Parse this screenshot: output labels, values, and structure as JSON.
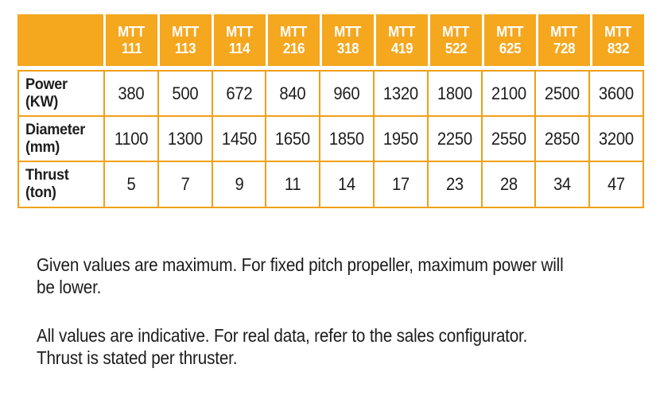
{
  "table": {
    "corner_label": "",
    "columns": [
      "MTT 111",
      "MTT 113",
      "MTT 114",
      "MTT 216",
      "MTT 318",
      "MTT 419",
      "MTT 522",
      "MTT 625",
      "MTT 728",
      "MTT 832"
    ],
    "rows": [
      {
        "label": "Power",
        "unit": "(KW)",
        "values": [
          "380",
          "500",
          "672",
          "840",
          "960",
          "1320",
          "1800",
          "2100",
          "2500",
          "3600"
        ]
      },
      {
        "label": "Diameter",
        "unit": "(mm)",
        "values": [
          "1100",
          "1300",
          "1450",
          "1650",
          "1850",
          "1950",
          "2250",
          "2550",
          "2850",
          "3200"
        ]
      },
      {
        "label": "Thrust",
        "unit": "(ton)",
        "values": [
          "5",
          "7",
          "9",
          "11",
          "14",
          "17",
          "23",
          "28",
          "34",
          "47"
        ]
      }
    ]
  },
  "notes": [
    {
      "lines": [
        "Given values are maximum. For fixed pitch propeller, maximum power will",
        "be lower."
      ]
    },
    {
      "lines": [
        "All values are indicative. For real data, refer to the sales configurator.",
        "Thrust is stated per thruster."
      ]
    }
  ],
  "colors": {
    "header_background": "#F5A71E",
    "grid_border": "#F0A018",
    "header_text": "#FFFFFF",
    "body_text": "#1D1D1D"
  }
}
